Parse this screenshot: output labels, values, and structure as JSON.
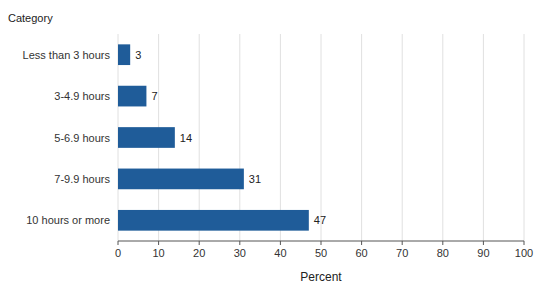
{
  "chart_data": {
    "type": "bar",
    "orientation": "horizontal",
    "categories": [
      "Less than 3 hours",
      "3-4.9 hours",
      "5-6.9 hours",
      "7-9.9 hours",
      "10 hours or more"
    ],
    "values": [
      3,
      7,
      14,
      31,
      47
    ],
    "color": "#1F5C99",
    "xlabel": "Percent",
    "ylabel": "Category",
    "xlim": [
      0,
      100
    ],
    "xticks": [
      0,
      10,
      20,
      30,
      40,
      50,
      60,
      70,
      80,
      90,
      100
    ],
    "grid": true,
    "data_labels": true
  }
}
